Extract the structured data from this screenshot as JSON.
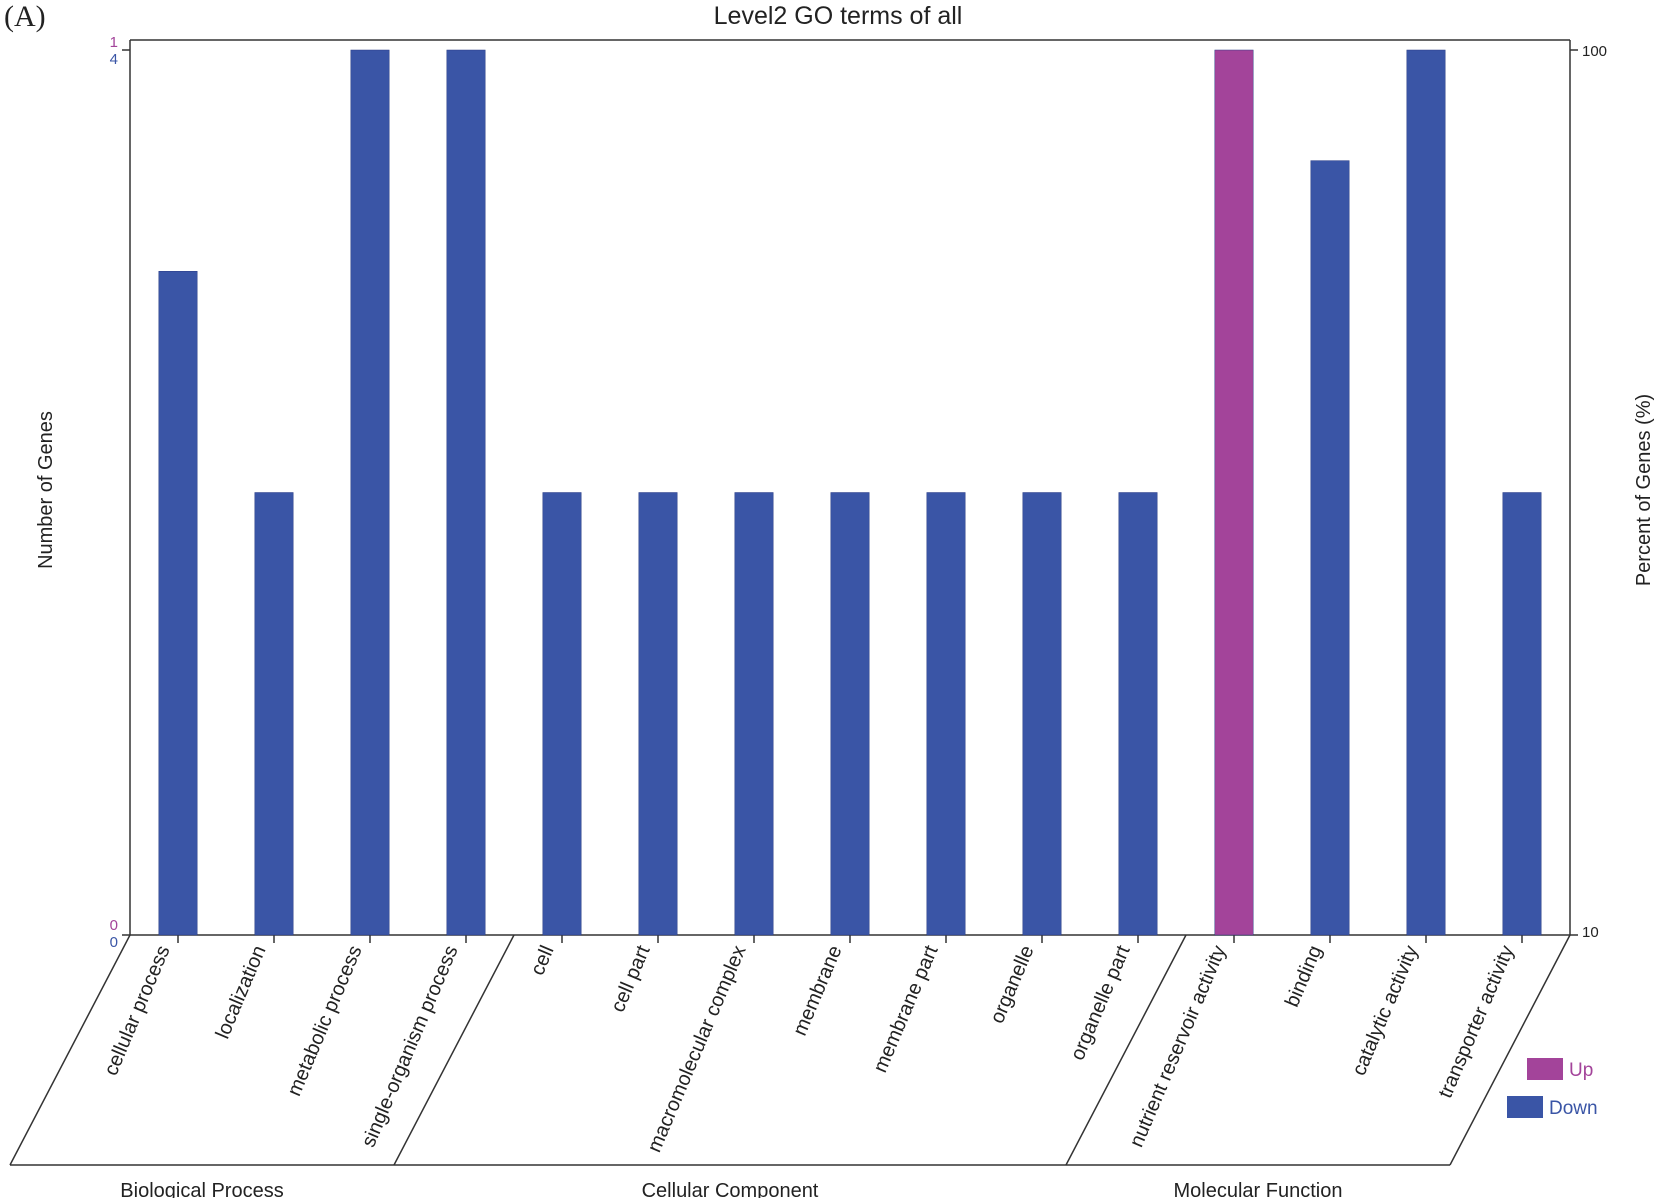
{
  "panel_label": "(A)",
  "chart_data": {
    "type": "bar",
    "title": "Level2 GO terms of all",
    "ylabel_left": "Number of Genes",
    "ylabel_right": "Percent of Genes (%)",
    "left_axis_up": {
      "ticks": [
        "0",
        "1"
      ],
      "color": "#a3449a"
    },
    "left_axis_down": {
      "ticks": [
        "0",
        "4"
      ],
      "color": "#3a55a6"
    },
    "right_axis": {
      "ticks": [
        "10",
        "100"
      ],
      "scale": "log"
    },
    "categories": [
      "cellular process",
      "localization",
      "metabolic process",
      "single-organism process",
      "cell",
      "cell part",
      "macromolecular complex",
      "membrane",
      "membrane part",
      "organelle",
      "organelle part",
      "nutrient reservoir activity",
      "binding",
      "catalytic activity",
      "transporter activity"
    ],
    "groups": [
      {
        "name": "Biological Process",
        "count": 4
      },
      {
        "name": "Cellular Component",
        "count": 7
      },
      {
        "name": "Molecular Function",
        "count": 4
      }
    ],
    "series": [
      {
        "name": "Up",
        "color": "#a3449a",
        "max": 1,
        "values": [
          0,
          0,
          0,
          0,
          0,
          0,
          0,
          0,
          0,
          0,
          0,
          1,
          0,
          0,
          0
        ]
      },
      {
        "name": "Down",
        "color": "#3a55a6",
        "max": 4,
        "values": [
          3,
          2,
          4,
          4,
          2,
          2,
          2,
          2,
          2,
          2,
          2,
          0,
          3.5,
          4,
          2
        ]
      }
    ],
    "legend_position": "bottom-right"
  }
}
